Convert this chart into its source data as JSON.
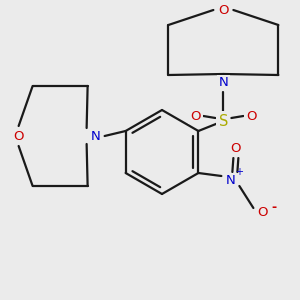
{
  "background_color": "#ebebeb",
  "bond_color": "#1a1a1a",
  "bond_width": 1.6,
  "atom_colors": {
    "N": "#0000cc",
    "O": "#cc0000",
    "S": "#aaaa00"
  },
  "bg": "#ebebeb"
}
